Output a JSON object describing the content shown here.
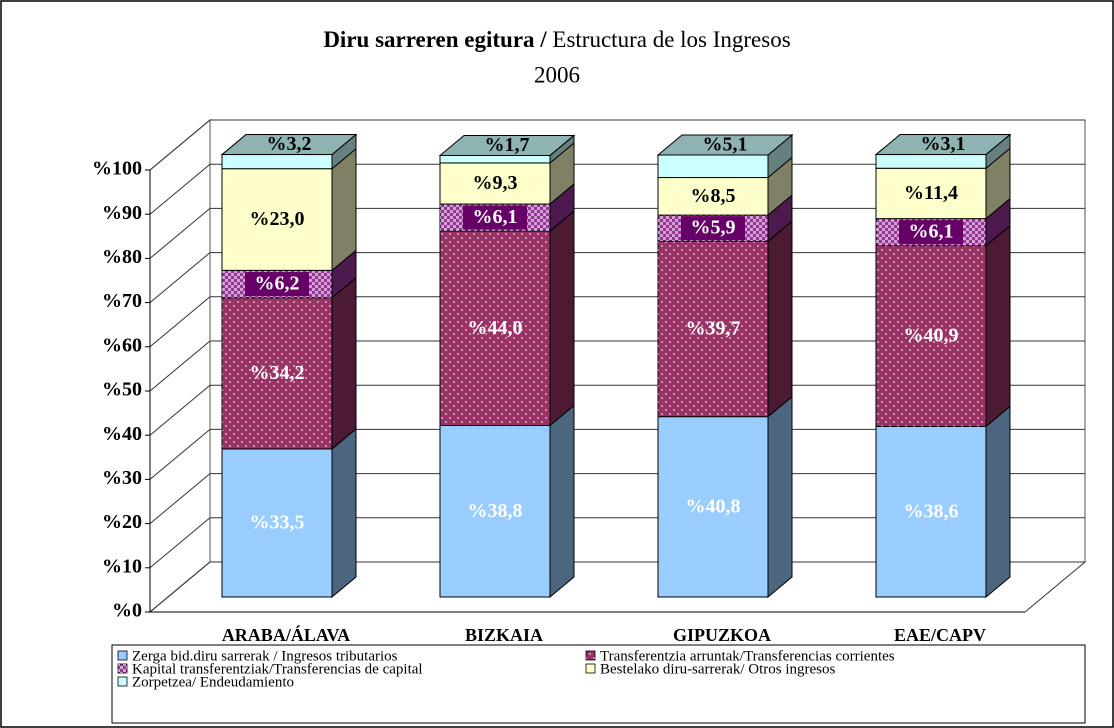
{
  "chart_data": {
    "type": "stacked_bar_3d",
    "title_eu": "Diru sarreren egitura /",
    "title_es": "Estructura de los Ingresos",
    "subtitle": "2006",
    "categories": [
      "ARABA/ÁLAVA",
      "BIZKAIA",
      "GIPUZKOA",
      "EAE/CAPV"
    ],
    "series": [
      {
        "name": "Zerga bid.diru sarrerak / Ingresos tributarios",
        "color": "#99ccff",
        "pattern": "none",
        "label_color": "#ffffff",
        "values": [
          33.5,
          38.8,
          40.8,
          38.6
        ],
        "value_labels": [
          "%33,5",
          "%38,8",
          "%40,8",
          "%38,6"
        ]
      },
      {
        "name": "Transferentzia arruntak/Transferencias corrientes",
        "color": "#993366",
        "pattern": "dots",
        "label_color": "#ffffff",
        "values": [
          34.2,
          44.0,
          39.7,
          40.9
        ],
        "value_labels": [
          "%34,2",
          "%44,0",
          "%39,7",
          "%40,9"
        ]
      },
      {
        "name": "Kapital transferentziak/Transferencias de capital",
        "color": "#993399",
        "pattern": "checker",
        "label_color": "#ffffff",
        "values": [
          6.2,
          6.1,
          5.9,
          6.1
        ],
        "value_labels": [
          "%6,2",
          "%6,1",
          "%5,9",
          "%6,1"
        ]
      },
      {
        "name": "Bestelako diru-sarrerak/ Otros ingresos",
        "color": "#ffffcc",
        "pattern": "none",
        "label_color": "#000000",
        "values": [
          23.0,
          9.3,
          8.5,
          11.4
        ],
        "value_labels": [
          "%23,0",
          "%9,3",
          "%8,5",
          "%11,4"
        ]
      },
      {
        "name": "Zorpetzea/ Endeudamiento",
        "color": "#ccffff",
        "pattern": "none",
        "label_color": "#000000",
        "values": [
          3.2,
          1.7,
          5.1,
          3.1
        ],
        "value_labels": [
          "%3,2",
          "%1,7",
          "%5,1",
          "%3,1"
        ]
      }
    ],
    "ylim": [
      0,
      100
    ],
    "yticks": [
      {
        "value": 0,
        "label": "%0"
      },
      {
        "value": 10,
        "label": "%10"
      },
      {
        "value": 20,
        "label": "%20"
      },
      {
        "value": 30,
        "label": "%30"
      },
      {
        "value": 40,
        "label": "%40"
      },
      {
        "value": 50,
        "label": "%50"
      },
      {
        "value": 60,
        "label": "%60"
      },
      {
        "value": 70,
        "label": "%70"
      },
      {
        "value": 80,
        "label": "%80"
      },
      {
        "value": 90,
        "label": "%90"
      },
      {
        "value": 100,
        "label": "%100"
      }
    ],
    "grid": true,
    "legend": "bottom"
  }
}
